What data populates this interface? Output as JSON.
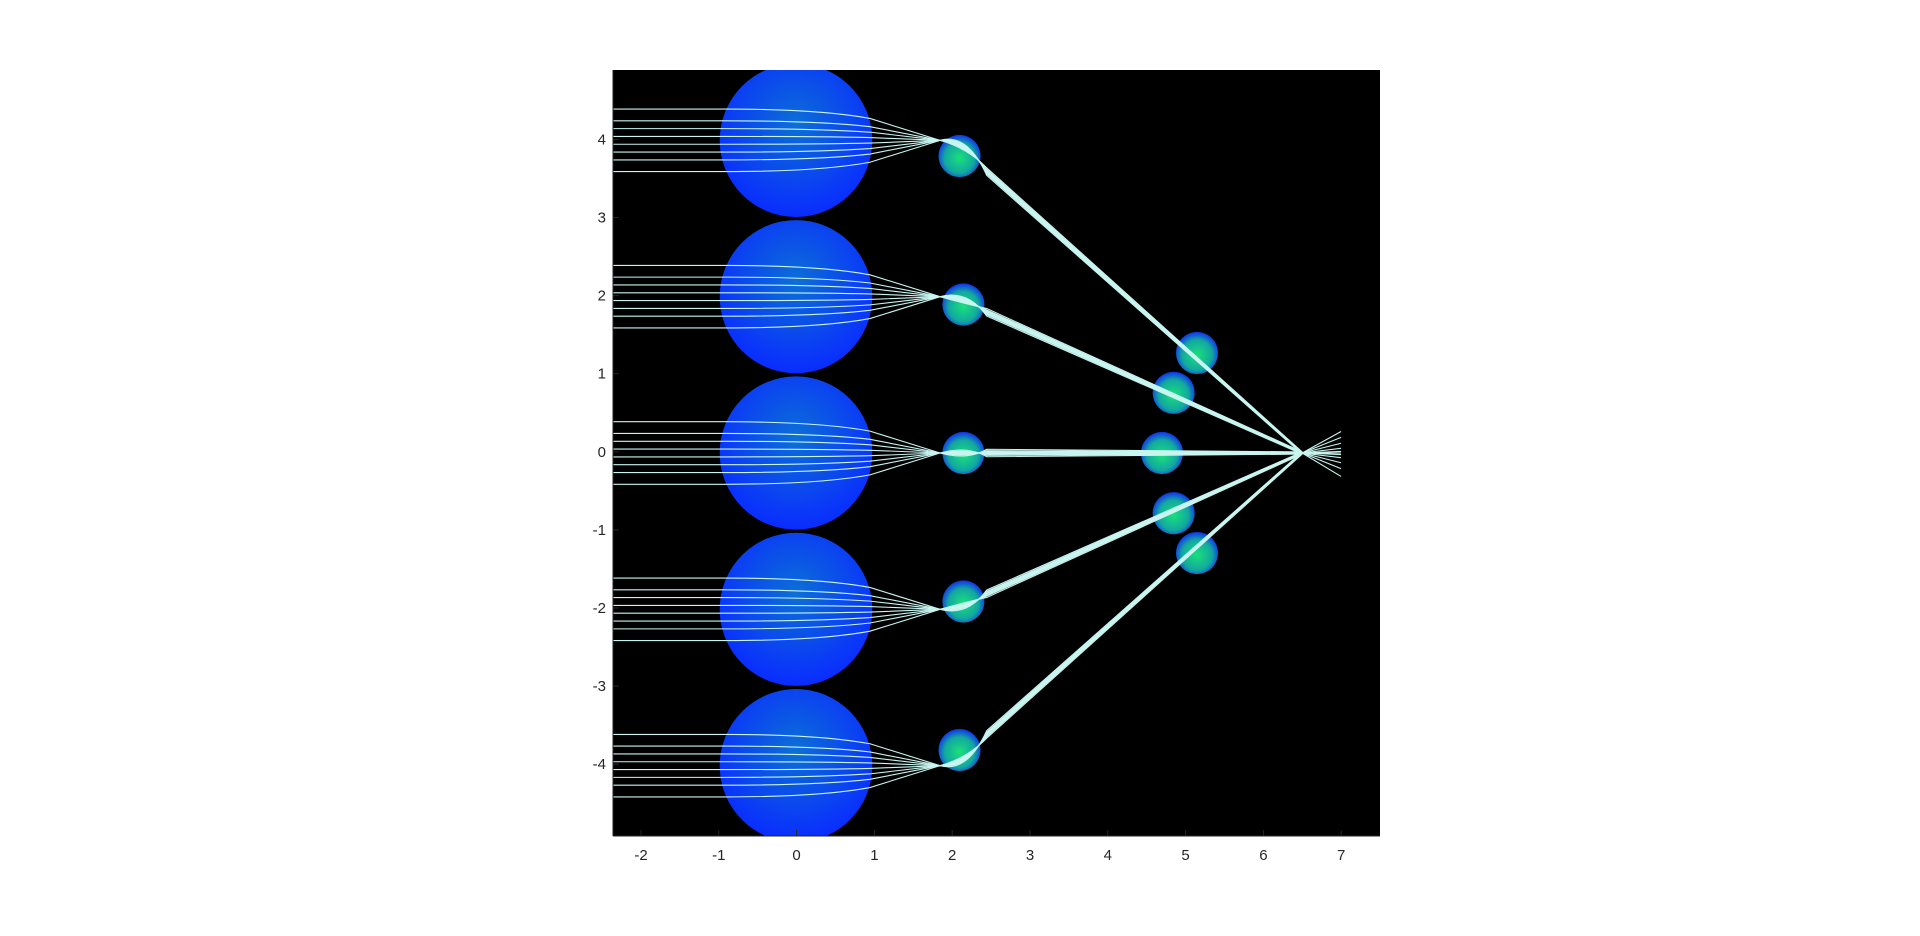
{
  "chart_data": {
    "type": "scatter",
    "title": "",
    "xlabel": "",
    "ylabel": "",
    "xlim": [
      -2.35,
      7.5
    ],
    "ylim": [
      -4.9,
      4.9
    ],
    "x_ticks": [
      -2,
      -1,
      0,
      1,
      2,
      3,
      4,
      5,
      6,
      7
    ],
    "x_tick_labels": [
      "-2",
      "-1",
      "0",
      "1",
      "2",
      "3",
      "4",
      "5",
      "6",
      "7"
    ],
    "y_ticks": [
      -4,
      -3,
      -2,
      -1,
      0,
      1,
      2,
      3,
      4
    ],
    "y_tick_labels": [
      "-4",
      "-3",
      "-2",
      "-1",
      "0",
      "1",
      "2",
      "3",
      "4"
    ],
    "background_color": "#000000",
    "ray_color": "#c8f5f0",
    "big_lens_colors": {
      "inner": "#0c6fd6",
      "outer": "#0a2cff"
    },
    "small_lens_colors": {
      "inner": "#19e07a",
      "outer": "#1030f0"
    },
    "big_lenses": [
      {
        "cx": 0,
        "cy": 4,
        "r": 0.98
      },
      {
        "cx": 0,
        "cy": 2,
        "r": 0.98
      },
      {
        "cx": 0,
        "cy": 0,
        "r": 0.98
      },
      {
        "cx": 0,
        "cy": -2,
        "r": 0.98
      },
      {
        "cx": 0,
        "cy": -4,
        "r": 0.98
      }
    ],
    "small_lenses": [
      {
        "cx": 2.1,
        "cy": 3.8,
        "r": 0.27
      },
      {
        "cx": 2.15,
        "cy": 1.9,
        "r": 0.27
      },
      {
        "cx": 2.15,
        "cy": 0.0,
        "r": 0.27
      },
      {
        "cx": 2.15,
        "cy": -1.9,
        "r": 0.27
      },
      {
        "cx": 2.1,
        "cy": -3.8,
        "r": 0.27
      },
      {
        "cx": 5.15,
        "cy": 1.28,
        "r": 0.27
      },
      {
        "cx": 4.85,
        "cy": 0.77,
        "r": 0.27
      },
      {
        "cx": 4.7,
        "cy": 0.0,
        "r": 0.27
      },
      {
        "cx": 4.85,
        "cy": -0.77,
        "r": 0.27
      },
      {
        "cx": 5.15,
        "cy": -1.28,
        "r": 0.27
      }
    ],
    "beams": [
      {
        "source_y": 4,
        "focus": [
          1.85,
          4.0
        ]
      },
      {
        "source_y": 2,
        "focus": [
          1.85,
          2.0
        ]
      },
      {
        "source_y": 0,
        "focus": [
          1.85,
          0.0
        ]
      },
      {
        "source_y": -2,
        "focus": [
          1.85,
          -2.0
        ]
      },
      {
        "source_y": -4,
        "focus": [
          1.85,
          -4.0
        ]
      }
    ],
    "ray_offsets": [
      0.4,
      0.25,
      0.15,
      0.05,
      -0.05,
      -0.15,
      -0.25,
      -0.4
    ],
    "ray_start_x": -2.35,
    "lens_exit_x": 0.95,
    "final_focus": [
      6.5,
      0.0
    ],
    "fan_end_x": 7.0,
    "fan_slopes": [
      -0.6,
      -0.4,
      -0.25,
      -0.12,
      -0.04,
      0.0,
      0.04,
      0.12,
      0.25,
      0.4,
      0.55
    ]
  }
}
